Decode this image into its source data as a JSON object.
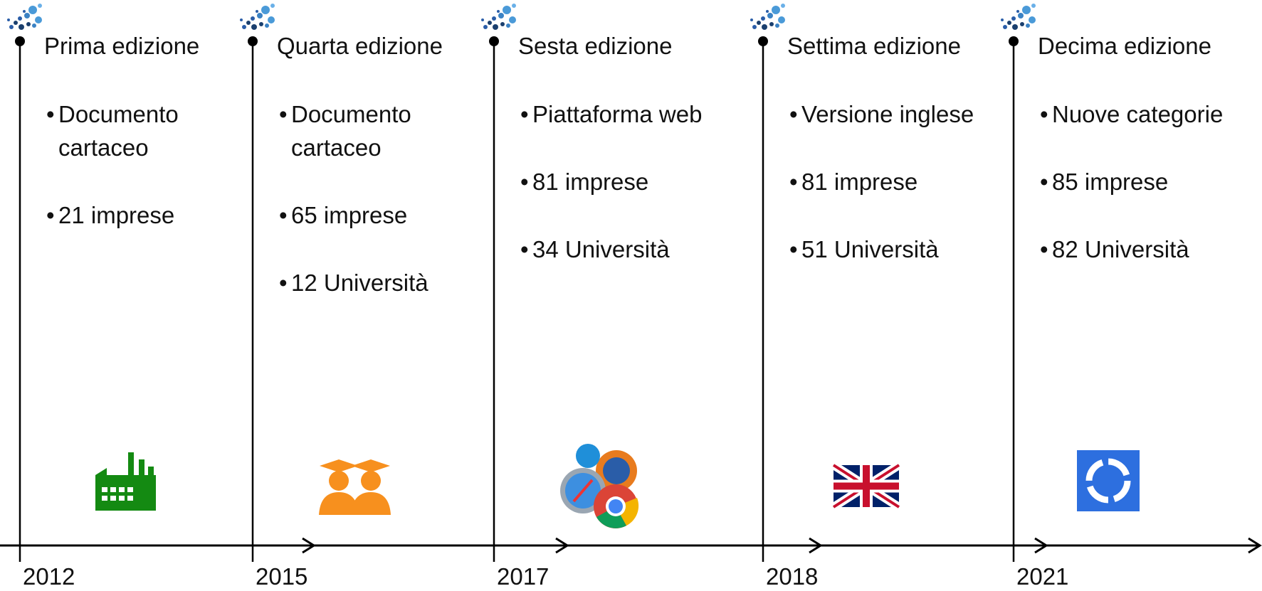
{
  "timeline": [
    {
      "year": "2012",
      "title": "Prima edizione",
      "bullets": [
        "Documento cartaceo",
        "21 imprese"
      ]
    },
    {
      "year": "2015",
      "title": "Quarta edizione",
      "bullets": [
        "Documento cartaceo",
        "65 imprese",
        "12 Università"
      ]
    },
    {
      "year": "2017",
      "title": "Sesta edizione",
      "bullets": [
        "Piattaforma web",
        "81 imprese",
        "34 Università"
      ]
    },
    {
      "year": "2018",
      "title": "Settima edizione",
      "bullets": [
        "Versione inglese",
        "81 imprese",
        "51 Università"
      ]
    },
    {
      "year": "2021",
      "title": "Decima edizione",
      "bullets": [
        "Nuove categorie",
        "85 imprese",
        "82 Università"
      ]
    }
  ]
}
